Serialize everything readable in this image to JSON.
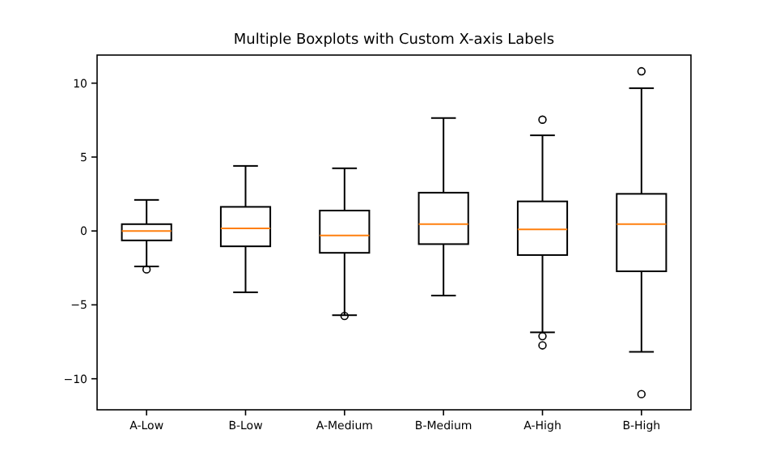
{
  "chart_data": {
    "type": "box",
    "title": "Multiple Boxplots with Custom X-axis Labels",
    "categories": [
      "A-Low",
      "B-Low",
      "A-Medium",
      "B-Medium",
      "A-High",
      "B-High"
    ],
    "boxes": [
      {
        "low": -2.4,
        "q1": -0.64,
        "median": 0.0,
        "q3": 0.46,
        "high": 2.1,
        "outliers": [
          -2.6
        ]
      },
      {
        "low": -4.15,
        "q1": -1.04,
        "median": 0.17,
        "q3": 1.63,
        "high": 4.4
      },
      {
        "low": -5.7,
        "q1": -1.48,
        "median": -0.3,
        "q3": 1.38,
        "high": 4.24,
        "outliers": [
          -5.75
        ]
      },
      {
        "low": -4.37,
        "q1": -0.89,
        "median": 0.46,
        "q3": 2.59,
        "high": 7.64
      },
      {
        "low": -6.86,
        "q1": -1.63,
        "median": 0.1,
        "q3": 2.0,
        "high": 6.47,
        "outliers": [
          7.53,
          -7.12,
          -7.74
        ]
      },
      {
        "low": -8.18,
        "q1": -2.73,
        "median": 0.46,
        "q3": 2.51,
        "high": 9.66,
        "outliers": [
          10.8,
          -11.04
        ]
      }
    ],
    "color": "#000000",
    "ylim": [
      -12.1,
      11.9
    ],
    "yticks": [
      -10,
      -5,
      0,
      5,
      10
    ],
    "grid": false
  }
}
